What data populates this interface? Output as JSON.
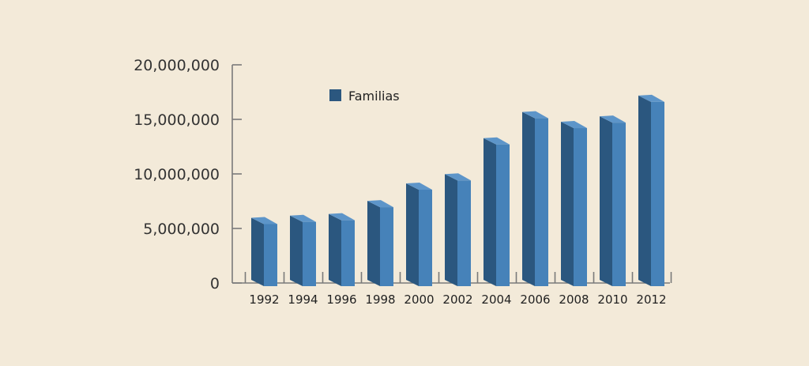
{
  "chart_data": {
    "type": "bar",
    "categories": [
      "1992",
      "1994",
      "1996",
      "1998",
      "2000",
      "2002",
      "2004",
      "2006",
      "2008",
      "2010",
      "2012"
    ],
    "series": [
      {
        "name": "Familias",
        "values": [
          5400000,
          5600000,
          5750000,
          6950000,
          8550000,
          9400000,
          12700000,
          15100000,
          14200000,
          14700000,
          16600000
        ]
      }
    ],
    "ylim": [
      0,
      20000000
    ],
    "yticks": [
      0,
      5000000,
      10000000,
      15000000,
      20000000
    ],
    "ytick_labels": [
      "0",
      "5,000,000",
      "10,000,000",
      "15,000,000",
      "20,000,000"
    ],
    "legend_position": "top-left",
    "colors": {
      "bar_front": "#4682b9",
      "bar_side": "#2b577f",
      "bar_top": "#5d95c9",
      "background": "#f3ead9"
    }
  }
}
